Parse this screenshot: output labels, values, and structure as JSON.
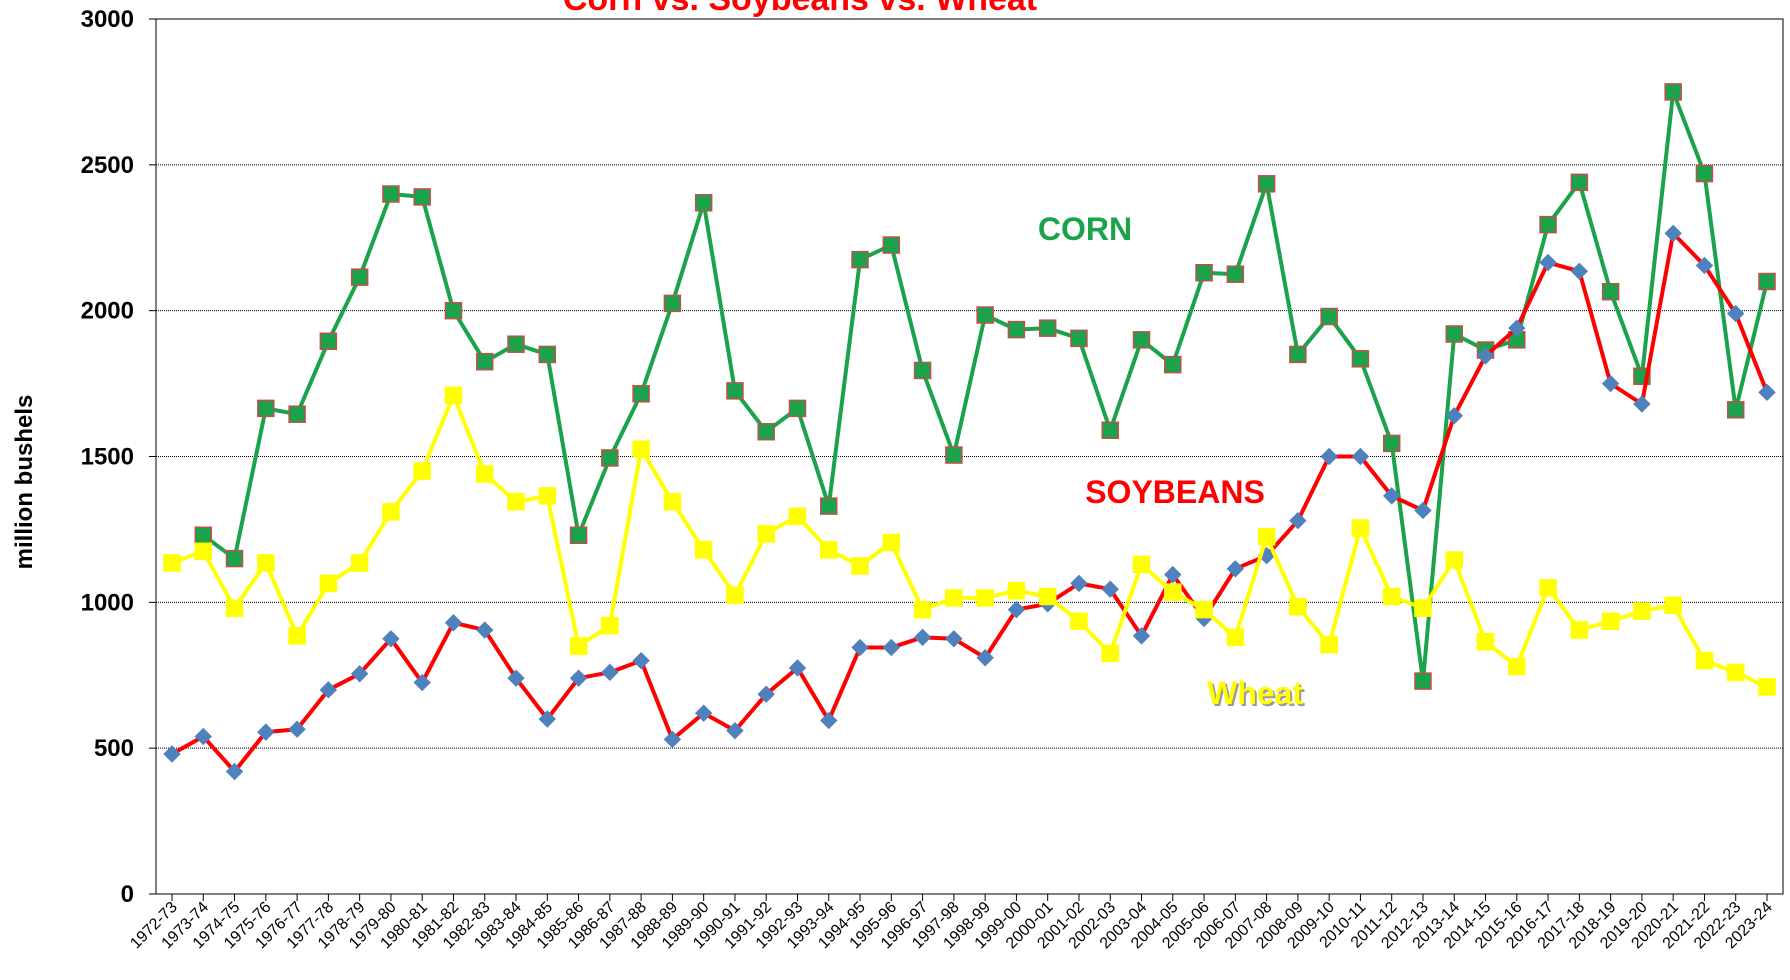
{
  "chart_data": {
    "type": "line",
    "title": "Corn vs. Soybeans vs. Wheat",
    "y_label": "million bushels",
    "categories": [
      "1972-73",
      "1973-74",
      "1974-75",
      "1975-76",
      "1976-77",
      "1977-78",
      "1978-79",
      "1979-80",
      "1980-81",
      "1981-82",
      "1982-83",
      "1983-84",
      "1984-85",
      "1985-86",
      "1986-87",
      "1987-88",
      "1988-89",
      "1989-90",
      "1990-91",
      "1991-92",
      "1992-93",
      "1993-94",
      "1994-95",
      "1995-96",
      "1996-97",
      "1997-98",
      "1998-99",
      "1999-00",
      "2000-01",
      "2001-02",
      "2002-03",
      "2003-04",
      "2004-05",
      "2005-06",
      "2006-07",
      "2007-08",
      "2008-09",
      "2009-10",
      "2010-11",
      "2011-12",
      "2012-13",
      "2013-14",
      "2014-15",
      "2015-16",
      "2016-17",
      "2017-18",
      "2018-19",
      "2019-20",
      "2020-21",
      "2021-22",
      "2022-23",
      "2023-24"
    ],
    "series": [
      {
        "name": "CORN",
        "color": "#1aa34a",
        "marker": "square",
        "marker_color": "#1aa34a",
        "marker_edge": "#c0504d",
        "values": [
          null,
          1230,
          1150,
          1665,
          1645,
          1895,
          2115,
          2400,
          2390,
          2000,
          1825,
          1885,
          1850,
          1230,
          1495,
          1715,
          2025,
          2370,
          1725,
          1585,
          1665,
          1330,
          2175,
          2225,
          1795,
          1505,
          1985,
          1935,
          1940,
          1905,
          1590,
          1900,
          1815,
          2130,
          2125,
          2435,
          1850,
          1980,
          1835,
          1545,
          730,
          1920,
          1865,
          1900,
          2295,
          2440,
          2065,
          1775,
          2750,
          2470,
          1660,
          2100
        ]
      },
      {
        "name": "SOYBEANS",
        "color": "#ff0000",
        "marker": "diamond",
        "marker_color": "#4f81bd",
        "marker_edge": "#4f81bd",
        "values": [
          480,
          540,
          420,
          555,
          565,
          700,
          755,
          875,
          725,
          930,
          905,
          740,
          600,
          740,
          760,
          800,
          530,
          620,
          560,
          685,
          775,
          595,
          845,
          845,
          880,
          875,
          810,
          975,
          995,
          1065,
          1045,
          885,
          1095,
          945,
          1115,
          1160,
          1280,
          1500,
          1500,
          1365,
          1315,
          1640,
          1845,
          1940,
          2165,
          2135,
          1750,
          1680,
          2265,
          2155,
          1990,
          1720
        ]
      },
      {
        "name": "Wheat",
        "color": "#ffff00",
        "marker": "square",
        "marker_color": "#ffff00",
        "marker_edge": "#ffff00",
        "values": [
          1135,
          1175,
          980,
          1135,
          885,
          1065,
          1135,
          1310,
          1450,
          1710,
          1440,
          1345,
          1365,
          850,
          920,
          1525,
          1345,
          1180,
          1025,
          1235,
          1295,
          1180,
          1125,
          1205,
          975,
          1015,
          1015,
          1040,
          1020,
          935,
          825,
          1130,
          1035,
          975,
          880,
          1225,
          985,
          855,
          1255,
          1020,
          980,
          1145,
          865,
          780,
          1050,
          905,
          935,
          970,
          990,
          800,
          760,
          710
        ]
      }
    ],
    "ylim": [
      0,
      3000
    ],
    "yticks": [
      0,
      500,
      1000,
      1500,
      2000,
      2500,
      3000
    ],
    "grid": true
  }
}
